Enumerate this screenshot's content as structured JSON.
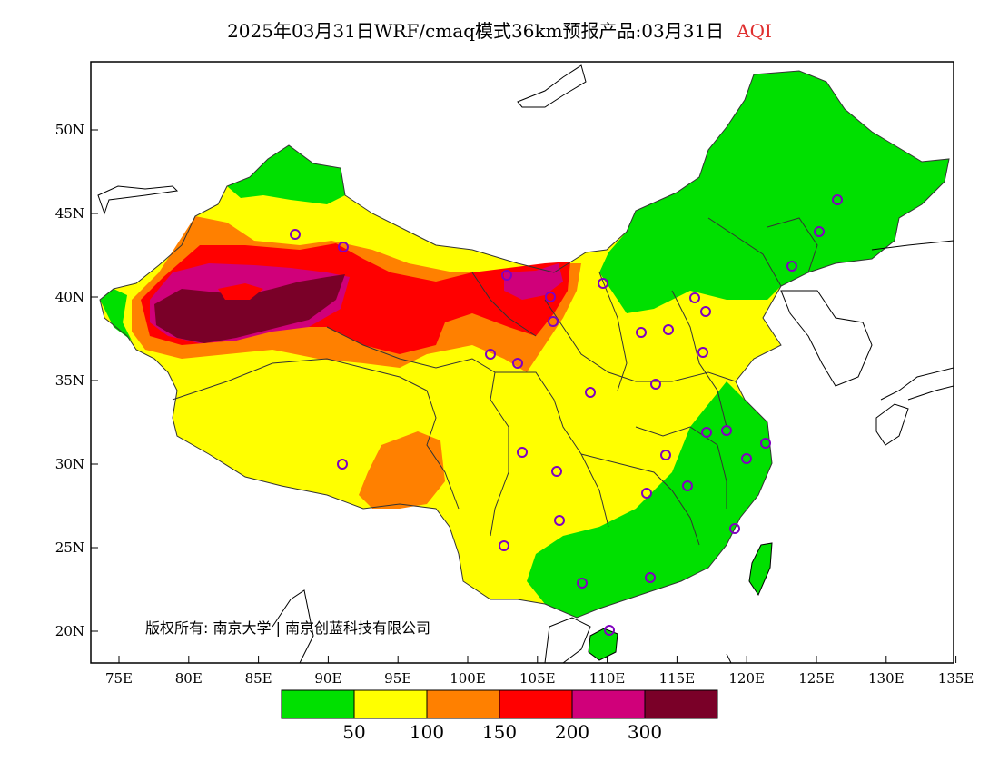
{
  "title": {
    "main": "2025年03月31日WRF/cmaq模式36km预报产品:03月31日",
    "variable": "AQI",
    "variable_color": "#e03030"
  },
  "axes": {
    "lon_ticks": [
      "75E",
      "80E",
      "85E",
      "90E",
      "95E",
      "100E",
      "105E",
      "110E",
      "115E",
      "120E",
      "125E",
      "130E",
      "135E"
    ],
    "lat_ticks": [
      "20N",
      "25N",
      "30N",
      "35N",
      "40N",
      "45N",
      "50N"
    ]
  },
  "legend": {
    "colors": [
      "#00e000",
      "#ffff00",
      "#ff8000",
      "#ff0000",
      "#d0007a",
      "#7a0028"
    ],
    "labels": [
      "50",
      "100",
      "150",
      "200",
      "300"
    ]
  },
  "copyright": "版权所有: 南京大学 | 南京创蓝科技有限公司",
  "colors": {
    "good": "#00e000",
    "moderate": "#ffff00",
    "sensitive": "#ff8000",
    "unhealthy": "#ff0000",
    "very_unhealthy": "#d0007a",
    "hazardous": "#7a0028",
    "station_marker": "#8000c0"
  }
}
